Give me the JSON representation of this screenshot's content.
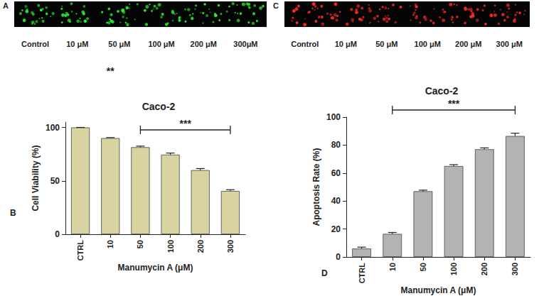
{
  "chart_data": [
    {
      "type": "bar",
      "title": "Caco-2",
      "x_label": "Manumycin A (μM)",
      "y_label": "Cell Viability (%)",
      "categories": [
        "CTRL",
        "10",
        "50",
        "100",
        "200",
        "300"
      ],
      "values": [
        100,
        90,
        81.5,
        74.5,
        60,
        40.5
      ],
      "errors": [
        0,
        0.5,
        1,
        1.5,
        1.5,
        1.2
      ],
      "color": "#d9d3a2",
      "ylim": [
        0,
        105
      ],
      "yticks": [
        0,
        50,
        100
      ],
      "grid": false,
      "annotations": [
        {
          "text": "B"
        },
        {
          "text": "**",
          "from": "10",
          "to": "10"
        },
        {
          "text": "***",
          "from": "50",
          "to": "300"
        }
      ]
    },
    {
      "type": "bar",
      "title": "Caco-2",
      "x_label": "Manumycin A (μM)",
      "y_label": "Apoptosis Rate (%)",
      "categories": [
        "CTRL",
        "10",
        "50",
        "100",
        "200",
        "300"
      ],
      "values": [
        6,
        16.5,
        47,
        65,
        77,
        86.5
      ],
      "errors": [
        1,
        1,
        0.8,
        1,
        1,
        2
      ],
      "color": "#b3b3b3",
      "ylim": [
        0,
        100
      ],
      "yticks": [
        0,
        20,
        40,
        60,
        80,
        100
      ],
      "grid": false,
      "annotations": [
        {
          "text": "D"
        },
        {
          "text": "***",
          "from": "10",
          "to": "300"
        }
      ]
    }
  ],
  "images": [
    {
      "label": "A",
      "color": "#2ee82e",
      "captions": [
        "Control",
        "10 μM",
        "50 μM",
        "100 μM",
        "200 μM",
        "300μM"
      ]
    },
    {
      "label": "C",
      "color": "#ff2a2a",
      "captions": [
        "Control",
        "10 μM",
        "50 μM",
        "100 μM",
        "200 μM",
        "300 μM"
      ]
    }
  ]
}
